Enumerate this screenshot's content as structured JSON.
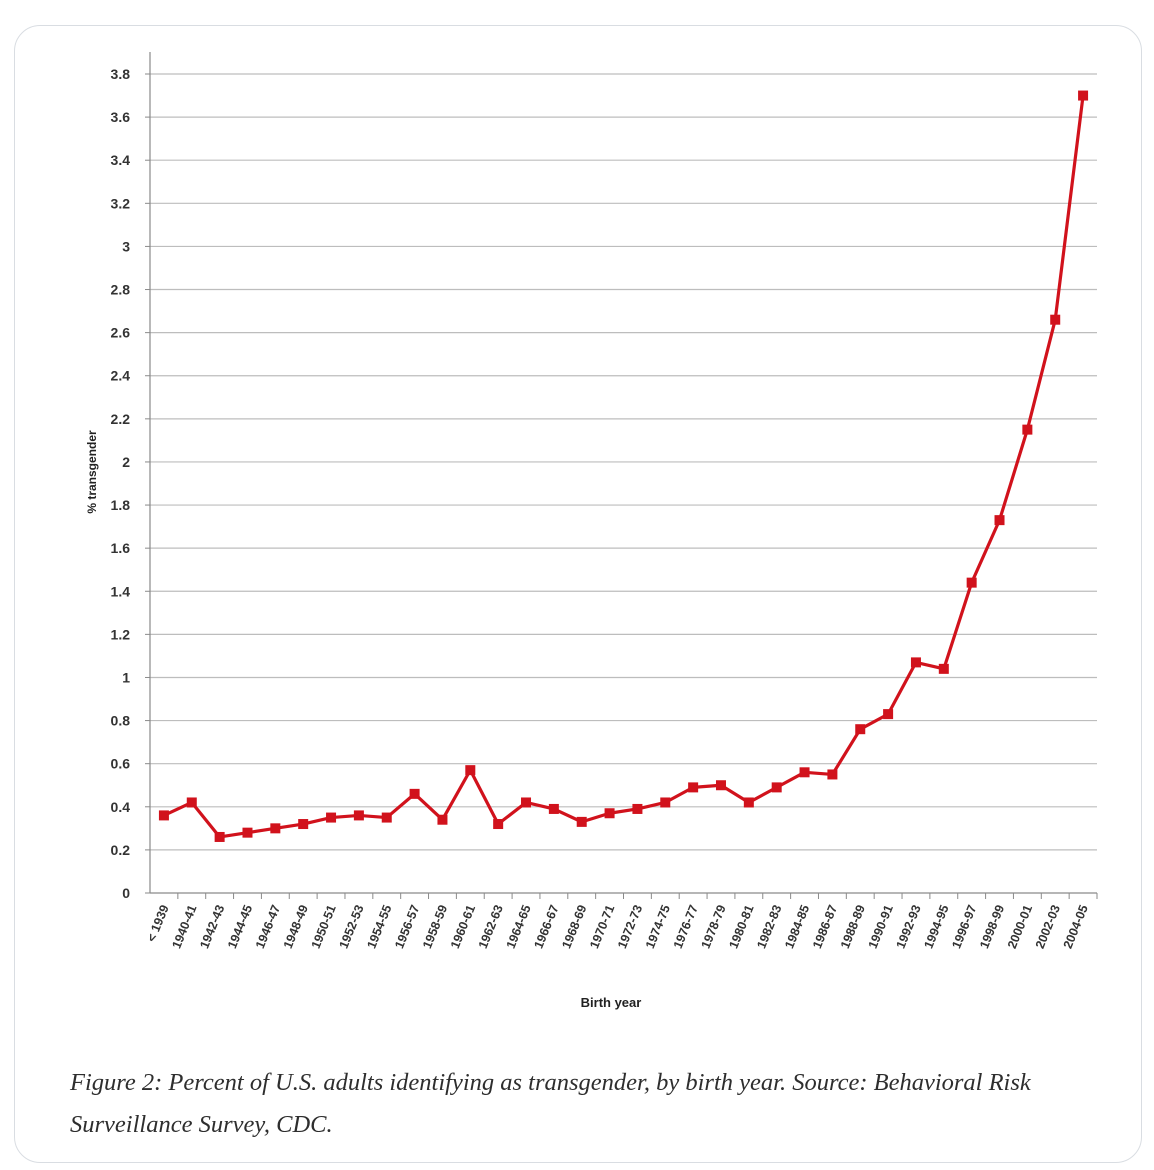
{
  "caption": "Figure 2: Percent of U.S. adults identifying as transgender, by birth year. Source: Behavioral Risk Surveillance Survey, CDC.",
  "chart_data": {
    "type": "line",
    "title": "",
    "xlabel": "Birth year",
    "ylabel": "% transgender",
    "ylim": [
      0,
      3.8
    ],
    "yticks": [
      "0",
      "0.2",
      "0.4",
      "0.6",
      "0.8",
      "1",
      "1.2",
      "1.4",
      "1.6",
      "1.8",
      "2",
      "2.2",
      "2.4",
      "2.6",
      "2.8",
      "3",
      "3.2",
      "3.4",
      "3.6",
      "3.8"
    ],
    "grid": true,
    "legend": "none",
    "series_color": "#d1121c",
    "categories": [
      "< 1939",
      "1940-41",
      "1942-43",
      "1944-45",
      "1946-47",
      "1948-49",
      "1950-51",
      "1952-53",
      "1954-55",
      "1956-57",
      "1958-59",
      "1960-61",
      "1962-63",
      "1964-65",
      "1966-67",
      "1968-69",
      "1970-71",
      "1972-73",
      "1974-75",
      "1976-77",
      "1978-79",
      "1980-81",
      "1982-83",
      "1984-85",
      "1986-87",
      "1988-89",
      "1990-91",
      "1992-93",
      "1994-95",
      "1996-97",
      "1998-99",
      "2000-01",
      "2002-03",
      "2004-05"
    ],
    "series": [
      {
        "values": [
          0.36,
          0.42,
          0.26,
          0.28,
          0.3,
          0.32,
          0.35,
          0.36,
          0.35,
          0.46,
          0.34,
          0.57,
          0.32,
          0.42,
          0.39,
          0.33,
          0.37,
          0.39,
          0.42,
          0.49,
          0.5,
          0.42,
          0.49,
          0.56,
          0.55,
          0.76,
          0.83,
          1.07,
          1.04,
          1.44,
          1.73,
          2.15,
          2.66,
          3.7
        ]
      }
    ]
  }
}
